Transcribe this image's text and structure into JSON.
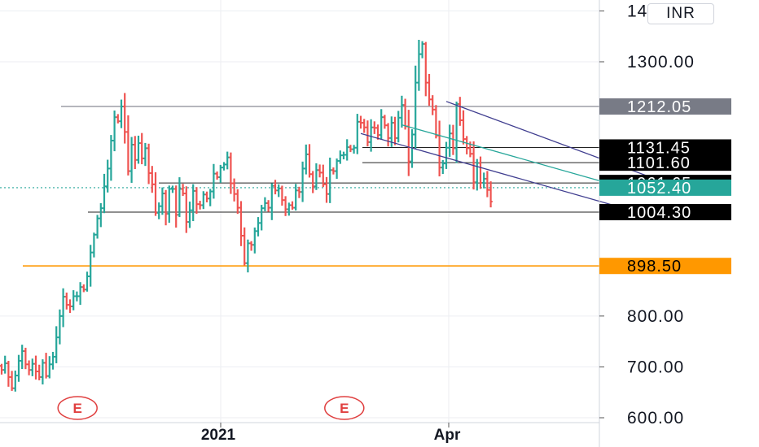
{
  "currency": "INR",
  "chart_data": {
    "type": "ohlc",
    "title": "",
    "y_axis": {
      "min": 600,
      "max": 1400,
      "ticks": [
        600,
        700,
        800,
        1300,
        1400
      ],
      "tick_labels": [
        "600.00",
        "700.00",
        "800.00",
        "1300.00",
        "1400.00"
      ]
    },
    "x_axis": {
      "labels": [
        "2021",
        "Apr"
      ]
    },
    "grid": true,
    "current_price": 1052.4,
    "price_tags": [
      {
        "label": "1212.05",
        "value": 1212.05,
        "style": "gray"
      },
      {
        "label": "1131.45",
        "value": 1131.45,
        "style": "black"
      },
      {
        "label": "1101.60",
        "value": 1101.6,
        "style": "black"
      },
      {
        "label": "1061.65",
        "value": 1061.65,
        "style": "black"
      },
      {
        "label": "1052.40",
        "value": 1052.4,
        "style": "teal"
      },
      {
        "label": "1004.30",
        "value": 1004.3,
        "style": "black"
      },
      {
        "label": "898.50",
        "value": 898.5,
        "style": "orange"
      }
    ],
    "horizontal_levels": [
      {
        "value": 1212.05,
        "color": "#6b6e78"
      },
      {
        "value": 1131.45,
        "color": "#222222"
      },
      {
        "value": 1101.6,
        "color": "#222222"
      },
      {
        "value": 1061.65,
        "color": "#222222"
      },
      {
        "value": 1004.3,
        "color": "#222222"
      },
      {
        "value": 898.5,
        "color": "#ff9800"
      }
    ],
    "trend_channels": [
      {
        "color": "#3f3d8f",
        "role": "upper",
        "start": {
          "bar": 130,
          "value": 1222
        },
        "end": {
          "bar": 197,
          "value": 1055
        }
      },
      {
        "color": "#3f3d8f",
        "role": "lower",
        "start": {
          "bar": 105,
          "value": 1159
        },
        "end": {
          "bar": 183,
          "value": 1010
        }
      },
      {
        "color": "#26a69a",
        "role": "middle",
        "start": {
          "bar": 117,
          "value": 1176
        },
        "end": {
          "bar": 190,
          "value": 1037
        }
      }
    ],
    "events": [
      {
        "label": "E",
        "bar": 26
      },
      {
        "label": "E",
        "bar": 104
      }
    ],
    "up_color": "#26a69a",
    "down_color": "#ef5350",
    "closes": [
      694,
      707,
      680,
      658,
      683,
      712,
      731,
      705,
      694,
      706,
      691,
      680,
      708,
      682,
      705,
      720,
      758,
      800,
      838,
      822,
      819,
      839,
      839,
      857,
      852,
      878,
      925,
      960,
      992,
      1012,
      1055,
      1090,
      1145,
      1191,
      1183,
      1212,
      1162,
      1085,
      1137,
      1107,
      1140,
      1110,
      1130,
      1081,
      1059,
      1003,
      1016,
      1041,
      1001,
      1050,
      1050,
      999,
      1050,
      1041,
      985,
      1008,
      1046,
      1020,
      1018,
      1039,
      1031,
      1045,
      1080,
      1073,
      1092,
      1098,
      1112,
      1061,
      1040,
      1013,
      958,
      904,
      943,
      940,
      967,
      983,
      1012,
      1022,
      1013,
      1056,
      1047,
      1051,
      1028,
      1010,
      1018,
      1013,
      1047,
      1044,
      1090,
      1118,
      1079,
      1055,
      1087,
      1082,
      1059,
      1040,
      1087,
      1085,
      1105,
      1116,
      1117,
      1132,
      1128,
      1131,
      1182,
      1180,
      1171,
      1142,
      1171,
      1170,
      1156,
      1191,
      1175,
      1150,
      1180,
      1150,
      1190,
      1215,
      1173,
      1104,
      1157,
      1259,
      1315,
      1335,
      1259,
      1226,
      1206,
      1155,
      1092,
      1100,
      1131,
      1159,
      1130,
      1217,
      1185,
      1148,
      1130,
      1119,
      1063,
      1101,
      1062,
      1070,
      1048,
      1025
    ]
  }
}
